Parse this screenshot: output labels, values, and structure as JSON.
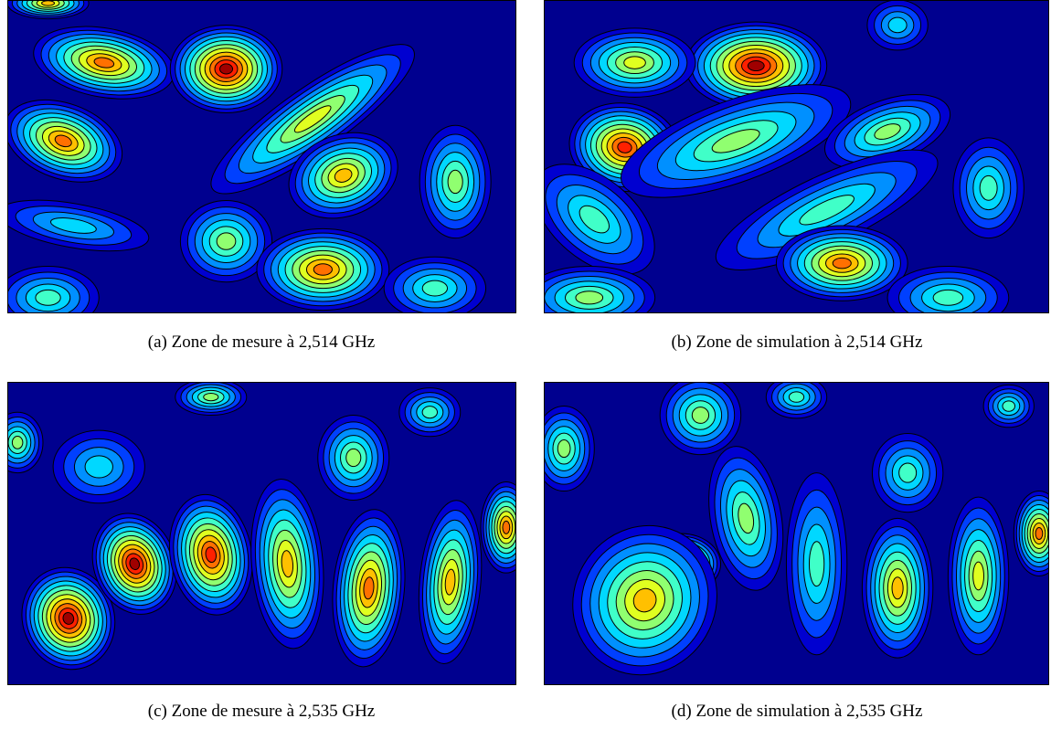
{
  "figure": {
    "panels": [
      {
        "caption": "(a) Zone de mesure à 2,514 GHz"
      },
      {
        "caption": "(b) Zone de simulation à 2,514 GHz"
      },
      {
        "caption": "(c) Zone de mesure à 2,535 GHz"
      },
      {
        "caption": "(d) Zone de simulation à 2,535 GHz"
      }
    ]
  }
}
